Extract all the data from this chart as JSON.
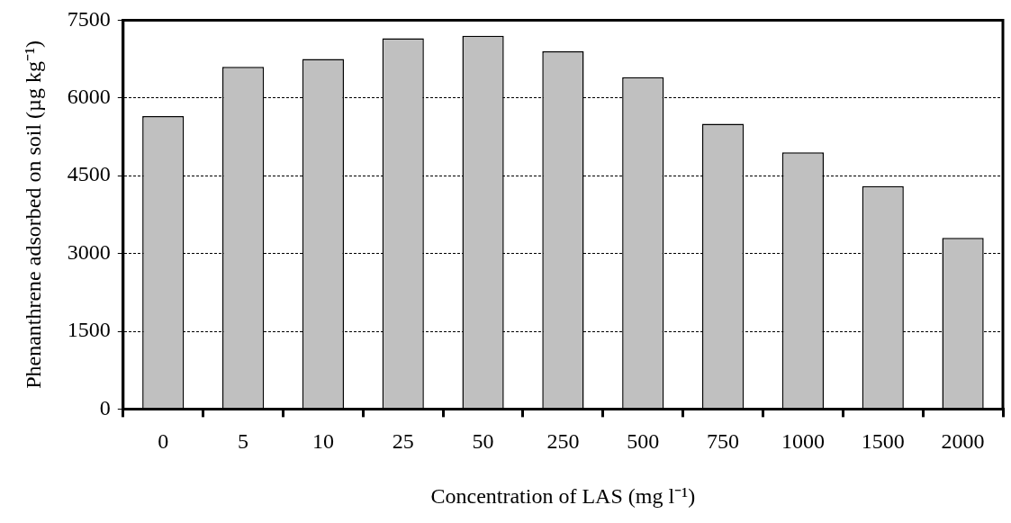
{
  "chart_data": {
    "type": "bar",
    "xlabel": "Concentration of LAS (mg l⁻¹)",
    "ylabel": "Phenanthrene adsorbed on soil (µg kg⁻¹)",
    "categories": [
      "0",
      "5",
      "10",
      "25",
      "50",
      "250",
      "500",
      "750",
      "1000",
      "1500",
      "2000"
    ],
    "values": [
      5650,
      6600,
      6750,
      7150,
      7200,
      6900,
      6400,
      5500,
      4950,
      4300,
      3300
    ],
    "color": "#c0c0c0",
    "ylim": [
      0,
      7500
    ],
    "yticks": [
      0,
      1500,
      3000,
      4500,
      6000,
      7500
    ],
    "grid": "y"
  }
}
